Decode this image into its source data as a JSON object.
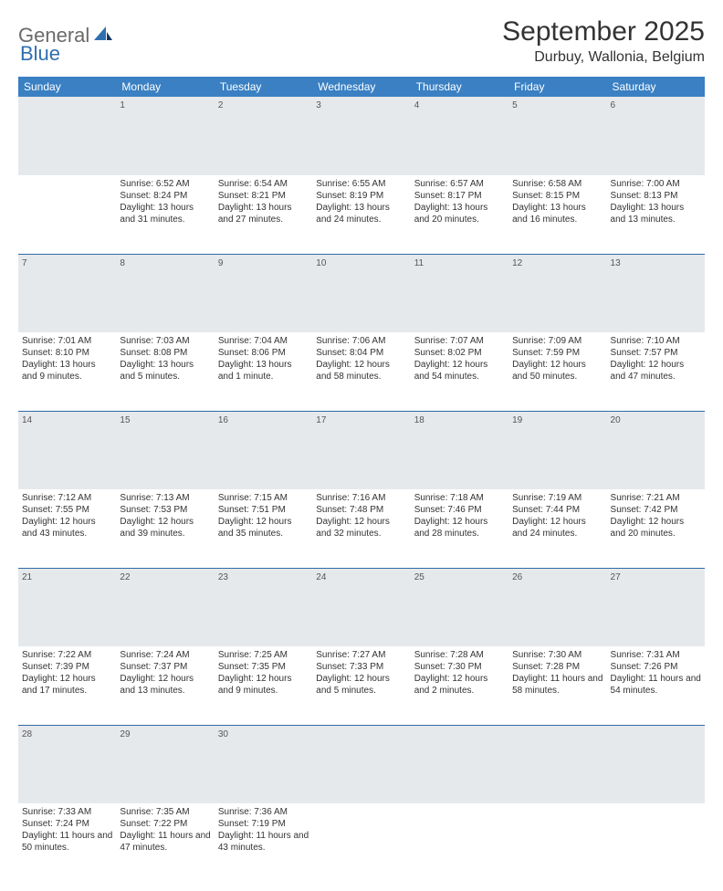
{
  "logo": {
    "general": "General",
    "blue": "Blue"
  },
  "title": "September 2025",
  "location": "Durbuy, Wallonia, Belgium",
  "colors": {
    "header_bg": "#3a80c3",
    "header_text": "#ffffff",
    "daynum_bg": "#e6e9ec",
    "daynum_text": "#555555",
    "rule": "#2f6aa8",
    "body_text": "#333333",
    "logo_gray": "#6a6a6a",
    "logo_blue": "#2f6fb0"
  },
  "dayHeaders": [
    "Sunday",
    "Monday",
    "Tuesday",
    "Wednesday",
    "Thursday",
    "Friday",
    "Saturday"
  ],
  "weeks": [
    {
      "nums": [
        "",
        "1",
        "2",
        "3",
        "4",
        "5",
        "6"
      ],
      "cells": [
        null,
        {
          "sunrise": "Sunrise: 6:52 AM",
          "sunset": "Sunset: 8:24 PM",
          "daylight": "Daylight: 13 hours and 31 minutes."
        },
        {
          "sunrise": "Sunrise: 6:54 AM",
          "sunset": "Sunset: 8:21 PM",
          "daylight": "Daylight: 13 hours and 27 minutes."
        },
        {
          "sunrise": "Sunrise: 6:55 AM",
          "sunset": "Sunset: 8:19 PM",
          "daylight": "Daylight: 13 hours and 24 minutes."
        },
        {
          "sunrise": "Sunrise: 6:57 AM",
          "sunset": "Sunset: 8:17 PM",
          "daylight": "Daylight: 13 hours and 20 minutes."
        },
        {
          "sunrise": "Sunrise: 6:58 AM",
          "sunset": "Sunset: 8:15 PM",
          "daylight": "Daylight: 13 hours and 16 minutes."
        },
        {
          "sunrise": "Sunrise: 7:00 AM",
          "sunset": "Sunset: 8:13 PM",
          "daylight": "Daylight: 13 hours and 13 minutes."
        }
      ]
    },
    {
      "nums": [
        "7",
        "8",
        "9",
        "10",
        "11",
        "12",
        "13"
      ],
      "cells": [
        {
          "sunrise": "Sunrise: 7:01 AM",
          "sunset": "Sunset: 8:10 PM",
          "daylight": "Daylight: 13 hours and 9 minutes."
        },
        {
          "sunrise": "Sunrise: 7:03 AM",
          "sunset": "Sunset: 8:08 PM",
          "daylight": "Daylight: 13 hours and 5 minutes."
        },
        {
          "sunrise": "Sunrise: 7:04 AM",
          "sunset": "Sunset: 8:06 PM",
          "daylight": "Daylight: 13 hours and 1 minute."
        },
        {
          "sunrise": "Sunrise: 7:06 AM",
          "sunset": "Sunset: 8:04 PM",
          "daylight": "Daylight: 12 hours and 58 minutes."
        },
        {
          "sunrise": "Sunrise: 7:07 AM",
          "sunset": "Sunset: 8:02 PM",
          "daylight": "Daylight: 12 hours and 54 minutes."
        },
        {
          "sunrise": "Sunrise: 7:09 AM",
          "sunset": "Sunset: 7:59 PM",
          "daylight": "Daylight: 12 hours and 50 minutes."
        },
        {
          "sunrise": "Sunrise: 7:10 AM",
          "sunset": "Sunset: 7:57 PM",
          "daylight": "Daylight: 12 hours and 47 minutes."
        }
      ]
    },
    {
      "nums": [
        "14",
        "15",
        "16",
        "17",
        "18",
        "19",
        "20"
      ],
      "cells": [
        {
          "sunrise": "Sunrise: 7:12 AM",
          "sunset": "Sunset: 7:55 PM",
          "daylight": "Daylight: 12 hours and 43 minutes."
        },
        {
          "sunrise": "Sunrise: 7:13 AM",
          "sunset": "Sunset: 7:53 PM",
          "daylight": "Daylight: 12 hours and 39 minutes."
        },
        {
          "sunrise": "Sunrise: 7:15 AM",
          "sunset": "Sunset: 7:51 PM",
          "daylight": "Daylight: 12 hours and 35 minutes."
        },
        {
          "sunrise": "Sunrise: 7:16 AM",
          "sunset": "Sunset: 7:48 PM",
          "daylight": "Daylight: 12 hours and 32 minutes."
        },
        {
          "sunrise": "Sunrise: 7:18 AM",
          "sunset": "Sunset: 7:46 PM",
          "daylight": "Daylight: 12 hours and 28 minutes."
        },
        {
          "sunrise": "Sunrise: 7:19 AM",
          "sunset": "Sunset: 7:44 PM",
          "daylight": "Daylight: 12 hours and 24 minutes."
        },
        {
          "sunrise": "Sunrise: 7:21 AM",
          "sunset": "Sunset: 7:42 PM",
          "daylight": "Daylight: 12 hours and 20 minutes."
        }
      ]
    },
    {
      "nums": [
        "21",
        "22",
        "23",
        "24",
        "25",
        "26",
        "27"
      ],
      "cells": [
        {
          "sunrise": "Sunrise: 7:22 AM",
          "sunset": "Sunset: 7:39 PM",
          "daylight": "Daylight: 12 hours and 17 minutes."
        },
        {
          "sunrise": "Sunrise: 7:24 AM",
          "sunset": "Sunset: 7:37 PM",
          "daylight": "Daylight: 12 hours and 13 minutes."
        },
        {
          "sunrise": "Sunrise: 7:25 AM",
          "sunset": "Sunset: 7:35 PM",
          "daylight": "Daylight: 12 hours and 9 minutes."
        },
        {
          "sunrise": "Sunrise: 7:27 AM",
          "sunset": "Sunset: 7:33 PM",
          "daylight": "Daylight: 12 hours and 5 minutes."
        },
        {
          "sunrise": "Sunrise: 7:28 AM",
          "sunset": "Sunset: 7:30 PM",
          "daylight": "Daylight: 12 hours and 2 minutes."
        },
        {
          "sunrise": "Sunrise: 7:30 AM",
          "sunset": "Sunset: 7:28 PM",
          "daylight": "Daylight: 11 hours and 58 minutes."
        },
        {
          "sunrise": "Sunrise: 7:31 AM",
          "sunset": "Sunset: 7:26 PM",
          "daylight": "Daylight: 11 hours and 54 minutes."
        }
      ]
    },
    {
      "nums": [
        "28",
        "29",
        "30",
        "",
        "",
        "",
        ""
      ],
      "cells": [
        {
          "sunrise": "Sunrise: 7:33 AM",
          "sunset": "Sunset: 7:24 PM",
          "daylight": "Daylight: 11 hours and 50 minutes."
        },
        {
          "sunrise": "Sunrise: 7:35 AM",
          "sunset": "Sunset: 7:22 PM",
          "daylight": "Daylight: 11 hours and 47 minutes."
        },
        {
          "sunrise": "Sunrise: 7:36 AM",
          "sunset": "Sunset: 7:19 PM",
          "daylight": "Daylight: 11 hours and 43 minutes."
        },
        null,
        null,
        null,
        null
      ]
    }
  ]
}
